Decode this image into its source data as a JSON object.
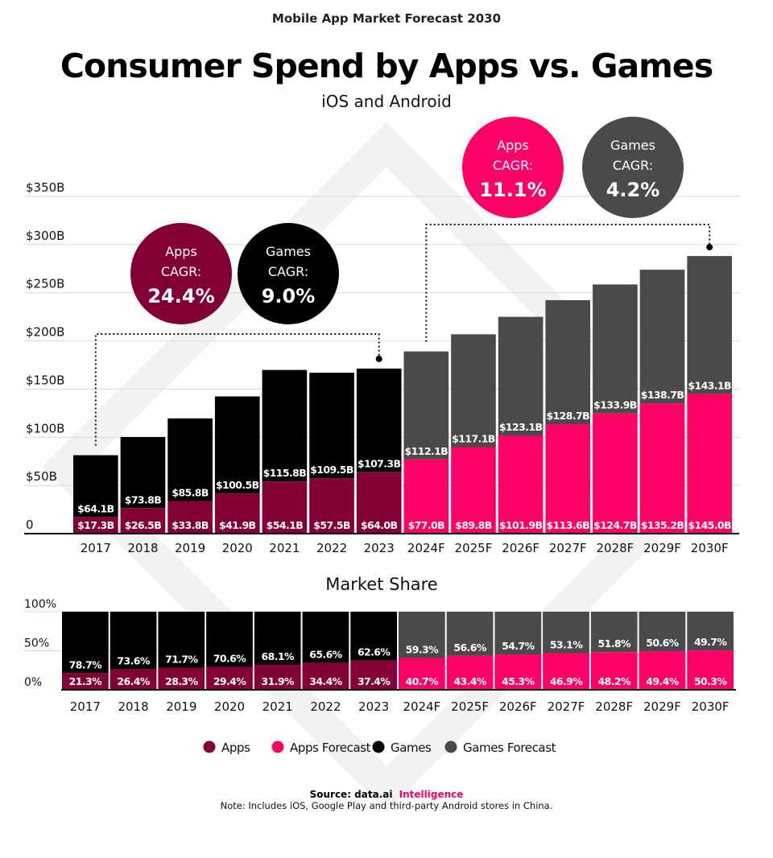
{
  "header": {
    "kicker": "Mobile App Market Forecast 2030",
    "title": "Consumer Spend by Apps vs. Games",
    "subtitle": "iOS and Android"
  },
  "colors": {
    "apps": "#820036",
    "apps_forecast": "#ff0066",
    "games": "#000000",
    "games_forecast": "#4a4a4a"
  },
  "bubbles": [
    {
      "line1": "Apps",
      "line2": "CAGR:",
      "value": "24.4%",
      "color": "#820036"
    },
    {
      "line1": "Games",
      "line2": "CAGR:",
      "value": "9.0%",
      "color": "#000000"
    },
    {
      "line1": "Apps",
      "line2": "CAGR:",
      "value": "11.1%",
      "color": "#ff0066"
    },
    {
      "line1": "Games",
      "line2": "CAGR:",
      "value": "4.2%",
      "color": "#4a4a4a"
    }
  ],
  "chart_data": [
    {
      "type": "bar",
      "stacked": true,
      "title": "",
      "ylabel": "",
      "ylim": [
        0,
        350
      ],
      "yticks": [
        "0",
        "$50B",
        "$100B",
        "$150B",
        "$200B",
        "$250B",
        "$300B",
        "$350B"
      ],
      "grid": true,
      "categories": [
        "2017",
        "2018",
        "2019",
        "2020",
        "2021",
        "2022",
        "2023",
        "2024F",
        "2025F",
        "2026F",
        "2027F",
        "2028F",
        "2029F",
        "2030F"
      ],
      "forecast_from": "2024F",
      "series": [
        {
          "name": "Apps",
          "values": [
            17.3,
            26.5,
            33.8,
            41.9,
            54.1,
            57.5,
            64.0,
            77.0,
            89.8,
            101.9,
            113.6,
            124.7,
            135.2,
            145.0
          ],
          "labels": [
            "$17.3B",
            "$26.5B",
            "$33.8B",
            "$41.9B",
            "$54.1B",
            "$57.5B",
            "$64.0B",
            "$77.0B",
            "$89.8B",
            "$101.9B",
            "$113.6B",
            "$124.7B",
            "$135.2B",
            "$145.0B"
          ]
        },
        {
          "name": "Games",
          "values": [
            64.1,
            73.8,
            85.8,
            100.5,
            115.8,
            109.5,
            107.3,
            112.1,
            117.1,
            123.1,
            128.7,
            133.9,
            138.7,
            143.1
          ],
          "labels": [
            "$64.1B",
            "$73.8B",
            "$85.8B",
            "$100.5B",
            "$115.8B",
            "$109.5B",
            "$107.3B",
            "$112.1B",
            "$117.1B",
            "$123.1B",
            "$128.7B",
            "$133.9B",
            "$138.7B",
            "$143.1B"
          ]
        }
      ]
    },
    {
      "type": "bar",
      "stacked": true,
      "title": "Market Share",
      "ylim": [
        0,
        100
      ],
      "yticks": [
        "0%",
        "50%",
        "100%"
      ],
      "categories": [
        "2017",
        "2018",
        "2019",
        "2020",
        "2021",
        "2022",
        "2023",
        "2024F",
        "2025F",
        "2026F",
        "2027F",
        "2028F",
        "2029F",
        "2030F"
      ],
      "series": [
        {
          "name": "Apps",
          "values": [
            21.3,
            26.4,
            28.3,
            29.4,
            31.9,
            34.4,
            37.4,
            40.7,
            43.4,
            45.3,
            46.9,
            48.2,
            49.4,
            50.3
          ],
          "labels": [
            "21.3%",
            "26.4%",
            "28.3%",
            "29.4%",
            "31.9%",
            "34.4%",
            "37.4%",
            "40.7%",
            "43.4%",
            "45.3%",
            "46.9%",
            "48.2%",
            "49.4%",
            "50.3%"
          ]
        },
        {
          "name": "Games",
          "values": [
            78.7,
            73.6,
            71.7,
            70.6,
            68.1,
            65.6,
            62.6,
            59.3,
            56.6,
            54.7,
            53.1,
            51.8,
            50.6,
            49.7
          ],
          "labels": [
            "78.7%",
            "73.6%",
            "71.7%",
            "70.6%",
            "68.1%",
            "65.6%",
            "62.6%",
            "59.3%",
            "56.6%",
            "54.7%",
            "53.1%",
            "51.8%",
            "50.6%",
            "49.7%"
          ]
        }
      ]
    }
  ],
  "legend": [
    {
      "label": "Apps",
      "color": "#820036"
    },
    {
      "label": "Apps Forecast",
      "color": "#ff0066"
    },
    {
      "label": "Games",
      "color": "#000000"
    },
    {
      "label": "Games Forecast",
      "color": "#4a4a4a"
    }
  ],
  "footer": {
    "source_prefix": "Source: data.ai",
    "source_brand": "Intelligence",
    "note": "Note: Includes iOS, Google Play and third-party Android stores in China."
  }
}
